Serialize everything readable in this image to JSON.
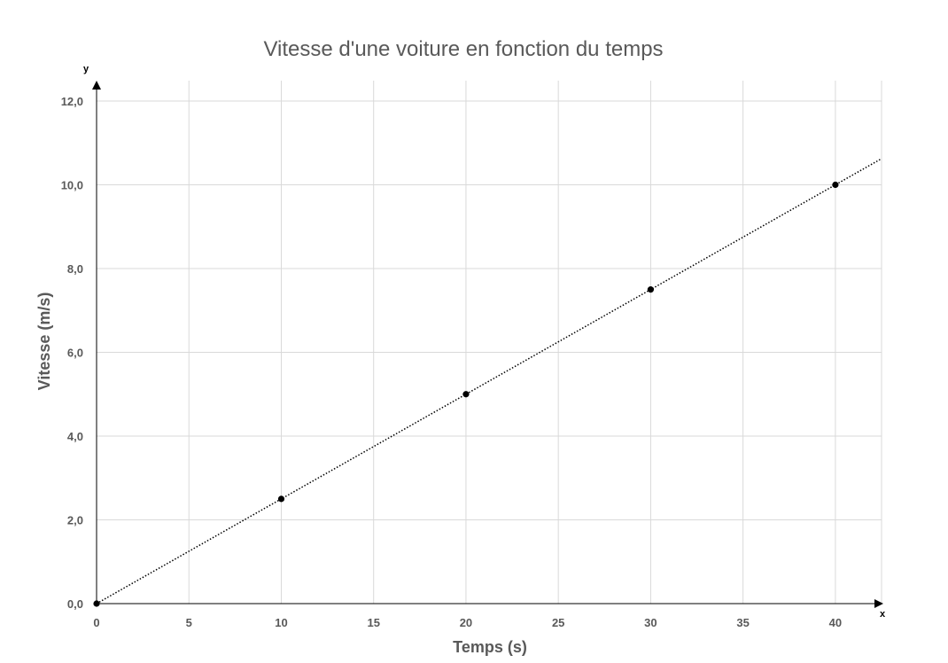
{
  "chart_data": {
    "type": "scatter",
    "title": "Vitesse d'une voiture en fonction du temps",
    "xlabel": "Temps (s)",
    "ylabel": "Vitesse (m/s)",
    "x_axis_letter": "x",
    "y_axis_letter": "y",
    "xlim": [
      0,
      42.5
    ],
    "ylim": [
      0,
      12.0
    ],
    "x_ticks": [
      "0",
      "5",
      "10",
      "15",
      "20",
      "25",
      "30",
      "35",
      "40"
    ],
    "y_ticks": [
      "0,0",
      "2,0",
      "4,0",
      "6,0",
      "8,0",
      "10,0",
      "12,0"
    ],
    "grid": true,
    "legend": "none",
    "series": [
      {
        "x": [
          0,
          10,
          20,
          30,
          40
        ],
        "y": [
          0,
          2.5,
          5.0,
          7.5,
          10.0
        ]
      }
    ],
    "trendline": {
      "style": "dotted",
      "x_range": [
        0,
        42.5
      ],
      "slope": 0.25,
      "intercept": 0
    },
    "colors": {
      "points": "#000000",
      "grid": "#d9d9d9",
      "text": "#595959",
      "axis": "#000000"
    }
  }
}
